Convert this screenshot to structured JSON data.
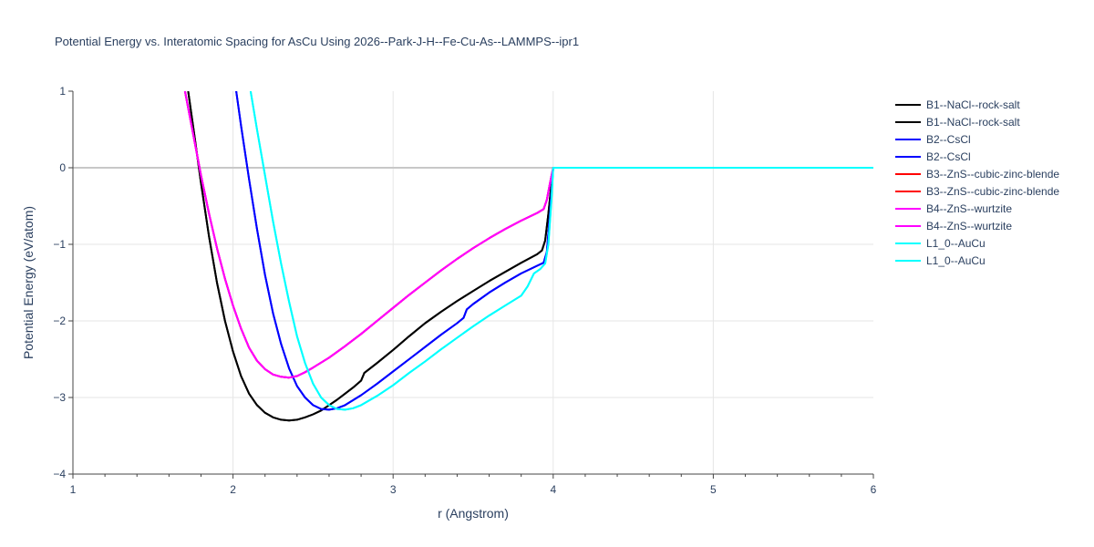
{
  "chart_data": {
    "type": "line",
    "title": "Potential Energy vs. Interatomic Spacing for AsCu Using 2026--Park-J-H--Fe-Cu-As--LAMMPS--ipr1",
    "xlabel": "r (Angstrom)",
    "ylabel": "Potential Energy (eV/atom)",
    "xlim": [
      1,
      6
    ],
    "ylim": [
      -4,
      1
    ],
    "x_ticks": [
      "1",
      "2",
      "3",
      "4",
      "5",
      "6"
    ],
    "y_ticks": [
      "1",
      "0",
      "−1",
      "−2",
      "−3",
      "−4"
    ],
    "grid": true,
    "legend_position": "right",
    "series": [
      {
        "name": "B1--NaCl--rock-salt",
        "color": "#000000",
        "x": [
          1.72,
          1.76,
          1.8,
          1.85,
          1.9,
          1.95,
          2.0,
          2.05,
          2.1,
          2.15,
          2.2,
          2.25,
          2.3,
          2.35,
          2.4,
          2.45,
          2.5,
          2.55,
          2.6,
          2.65,
          2.7,
          2.75,
          2.8,
          2.82,
          2.9,
          3.0,
          3.1,
          3.2,
          3.3,
          3.4,
          3.5,
          3.6,
          3.7,
          3.8,
          3.9,
          3.93,
          3.95,
          3.97,
          3.99,
          4.0,
          4.1,
          4.5,
          5.0,
          5.5,
          6.0
        ],
        "y": [
          1.0,
          0.4,
          -0.2,
          -0.9,
          -1.5,
          -2.0,
          -2.4,
          -2.72,
          -2.95,
          -3.1,
          -3.2,
          -3.26,
          -3.29,
          -3.3,
          -3.29,
          -3.26,
          -3.22,
          -3.17,
          -3.1,
          -3.03,
          -2.95,
          -2.87,
          -2.78,
          -2.68,
          -2.55,
          -2.38,
          -2.2,
          -2.03,
          -1.88,
          -1.74,
          -1.61,
          -1.48,
          -1.36,
          -1.24,
          -1.13,
          -1.08,
          -0.95,
          -0.6,
          -0.2,
          0.0,
          0.0,
          0.0,
          0.0,
          0.0,
          0.0
        ]
      },
      {
        "name": "B1--NaCl--rock-salt",
        "color": "#000000",
        "x": [
          1.72,
          1.76,
          1.8,
          1.85,
          1.9,
          1.95,
          2.0,
          2.05,
          2.1,
          2.15,
          2.2,
          2.25,
          2.3,
          2.35,
          2.4,
          2.45,
          2.5,
          2.55,
          2.6,
          2.65,
          2.7,
          2.75,
          2.8,
          2.82,
          2.9,
          3.0,
          3.1,
          3.2,
          3.3,
          3.4,
          3.5,
          3.6,
          3.7,
          3.8,
          3.9,
          3.93,
          3.95,
          3.97,
          3.99,
          4.0,
          4.1,
          4.5,
          5.0,
          5.5,
          6.0
        ],
        "y": [
          1.0,
          0.4,
          -0.2,
          -0.9,
          -1.5,
          -2.0,
          -2.4,
          -2.72,
          -2.95,
          -3.1,
          -3.2,
          -3.26,
          -3.29,
          -3.3,
          -3.29,
          -3.26,
          -3.22,
          -3.17,
          -3.1,
          -3.03,
          -2.95,
          -2.87,
          -2.78,
          -2.68,
          -2.55,
          -2.38,
          -2.2,
          -2.03,
          -1.88,
          -1.74,
          -1.61,
          -1.48,
          -1.36,
          -1.24,
          -1.13,
          -1.08,
          -0.95,
          -0.6,
          -0.2,
          0.0,
          0.0,
          0.0,
          0.0,
          0.0,
          0.0
        ]
      },
      {
        "name": "B2--CsCl",
        "color": "#0000ff",
        "x": [
          2.02,
          2.05,
          2.1,
          2.15,
          2.2,
          2.25,
          2.3,
          2.35,
          2.4,
          2.45,
          2.5,
          2.55,
          2.6,
          2.65,
          2.7,
          2.8,
          2.9,
          3.0,
          3.1,
          3.2,
          3.3,
          3.4,
          3.44,
          3.46,
          3.5,
          3.6,
          3.7,
          3.8,
          3.9,
          3.94,
          3.96,
          3.98,
          4.0,
          4.1,
          4.5,
          5.0,
          5.5,
          6.0
        ],
        "y": [
          1.0,
          0.55,
          -0.15,
          -0.8,
          -1.4,
          -1.9,
          -2.3,
          -2.62,
          -2.85,
          -3.0,
          -3.1,
          -3.15,
          -3.16,
          -3.14,
          -3.1,
          -2.97,
          -2.82,
          -2.66,
          -2.5,
          -2.34,
          -2.18,
          -2.03,
          -1.96,
          -1.85,
          -1.78,
          -1.63,
          -1.5,
          -1.38,
          -1.28,
          -1.24,
          -1.1,
          -0.6,
          0.0,
          0.0,
          0.0,
          0.0,
          0.0,
          0.0
        ]
      },
      {
        "name": "B2--CsCl",
        "color": "#0000ff",
        "x": [
          2.02,
          2.05,
          2.1,
          2.15,
          2.2,
          2.25,
          2.3,
          2.35,
          2.4,
          2.45,
          2.5,
          2.55,
          2.6,
          2.65,
          2.7,
          2.8,
          2.9,
          3.0,
          3.1,
          3.2,
          3.3,
          3.4,
          3.44,
          3.46,
          3.5,
          3.6,
          3.7,
          3.8,
          3.9,
          3.94,
          3.96,
          3.98,
          4.0,
          4.1,
          4.5,
          5.0,
          5.5,
          6.0
        ],
        "y": [
          1.0,
          0.55,
          -0.15,
          -0.8,
          -1.4,
          -1.9,
          -2.3,
          -2.62,
          -2.85,
          -3.0,
          -3.1,
          -3.15,
          -3.16,
          -3.14,
          -3.1,
          -2.97,
          -2.82,
          -2.66,
          -2.5,
          -2.34,
          -2.18,
          -2.03,
          -1.96,
          -1.85,
          -1.78,
          -1.63,
          -1.5,
          -1.38,
          -1.28,
          -1.24,
          -1.1,
          -0.6,
          0.0,
          0.0,
          0.0,
          0.0,
          0.0,
          0.0
        ]
      },
      {
        "name": "B3--ZnS--cubic-zinc-blende",
        "color": "#ff0000",
        "x": [
          1.7,
          1.75,
          1.8,
          1.85,
          1.9,
          1.95,
          2.0,
          2.05,
          2.1,
          2.15,
          2.2,
          2.25,
          2.3,
          2.35,
          2.4,
          2.45,
          2.5,
          2.6,
          2.7,
          2.8,
          2.9,
          3.0,
          3.1,
          3.2,
          3.3,
          3.4,
          3.5,
          3.6,
          3.7,
          3.8,
          3.9,
          3.94,
          3.96,
          3.98,
          4.0,
          4.1,
          4.5,
          5.0,
          5.5,
          6.0
        ],
        "y": [
          1.0,
          0.45,
          -0.1,
          -0.6,
          -1.05,
          -1.45,
          -1.8,
          -2.1,
          -2.35,
          -2.52,
          -2.63,
          -2.7,
          -2.73,
          -2.74,
          -2.72,
          -2.67,
          -2.61,
          -2.48,
          -2.33,
          -2.17,
          -2.0,
          -1.83,
          -1.66,
          -1.5,
          -1.34,
          -1.19,
          -1.05,
          -0.92,
          -0.8,
          -0.69,
          -0.59,
          -0.54,
          -0.42,
          -0.2,
          0.0,
          0.0,
          0.0,
          0.0,
          0.0,
          0.0
        ]
      },
      {
        "name": "B3--ZnS--cubic-zinc-blende",
        "color": "#ff0000",
        "x": [
          1.7,
          1.75,
          1.8,
          1.85,
          1.9,
          1.95,
          2.0,
          2.05,
          2.1,
          2.15,
          2.2,
          2.25,
          2.3,
          2.35,
          2.4,
          2.45,
          2.5,
          2.6,
          2.7,
          2.8,
          2.9,
          3.0,
          3.1,
          3.2,
          3.3,
          3.4,
          3.5,
          3.6,
          3.7,
          3.8,
          3.9,
          3.94,
          3.96,
          3.98,
          4.0,
          4.1,
          4.5,
          5.0,
          5.5,
          6.0
        ],
        "y": [
          1.0,
          0.45,
          -0.1,
          -0.6,
          -1.05,
          -1.45,
          -1.8,
          -2.1,
          -2.35,
          -2.52,
          -2.63,
          -2.7,
          -2.73,
          -2.74,
          -2.72,
          -2.67,
          -2.61,
          -2.48,
          -2.33,
          -2.17,
          -2.0,
          -1.83,
          -1.66,
          -1.5,
          -1.34,
          -1.19,
          -1.05,
          -0.92,
          -0.8,
          -0.69,
          -0.59,
          -0.54,
          -0.42,
          -0.2,
          0.0,
          0.0,
          0.0,
          0.0,
          0.0,
          0.0
        ]
      },
      {
        "name": "B4--ZnS--wurtzite",
        "color": "#ff00ff",
        "x": [
          1.7,
          1.75,
          1.8,
          1.85,
          1.9,
          1.95,
          2.0,
          2.05,
          2.1,
          2.15,
          2.2,
          2.25,
          2.3,
          2.35,
          2.4,
          2.45,
          2.5,
          2.6,
          2.7,
          2.8,
          2.9,
          3.0,
          3.1,
          3.2,
          3.3,
          3.4,
          3.5,
          3.6,
          3.7,
          3.8,
          3.9,
          3.94,
          3.96,
          3.98,
          4.0,
          4.1,
          4.5,
          5.0,
          5.5,
          6.0
        ],
        "y": [
          1.0,
          0.45,
          -0.1,
          -0.6,
          -1.05,
          -1.45,
          -1.8,
          -2.1,
          -2.35,
          -2.52,
          -2.63,
          -2.7,
          -2.73,
          -2.74,
          -2.72,
          -2.67,
          -2.61,
          -2.48,
          -2.33,
          -2.17,
          -2.0,
          -1.83,
          -1.66,
          -1.5,
          -1.34,
          -1.19,
          -1.05,
          -0.92,
          -0.8,
          -0.69,
          -0.59,
          -0.54,
          -0.42,
          -0.2,
          0.0,
          0.0,
          0.0,
          0.0,
          0.0,
          0.0
        ]
      },
      {
        "name": "B4--ZnS--wurtzite",
        "color": "#ff00ff",
        "x": [
          1.7,
          1.75,
          1.8,
          1.85,
          1.9,
          1.95,
          2.0,
          2.05,
          2.1,
          2.15,
          2.2,
          2.25,
          2.3,
          2.35,
          2.4,
          2.45,
          2.5,
          2.6,
          2.7,
          2.8,
          2.9,
          3.0,
          3.1,
          3.2,
          3.3,
          3.4,
          3.5,
          3.6,
          3.7,
          3.8,
          3.9,
          3.94,
          3.96,
          3.98,
          4.0,
          4.1,
          4.5,
          5.0,
          5.5,
          6.0
        ],
        "y": [
          1.0,
          0.45,
          -0.1,
          -0.6,
          -1.05,
          -1.45,
          -1.8,
          -2.1,
          -2.35,
          -2.52,
          -2.63,
          -2.7,
          -2.73,
          -2.74,
          -2.72,
          -2.67,
          -2.61,
          -2.48,
          -2.33,
          -2.17,
          -2.0,
          -1.83,
          -1.66,
          -1.5,
          -1.34,
          -1.19,
          -1.05,
          -0.92,
          -0.8,
          -0.69,
          -0.59,
          -0.54,
          -0.42,
          -0.2,
          0.0,
          0.0,
          0.0,
          0.0,
          0.0,
          0.0
        ]
      },
      {
        "name": "L1_0--AuCu",
        "color": "#00ffff",
        "x": [
          2.11,
          2.15,
          2.2,
          2.25,
          2.3,
          2.35,
          2.4,
          2.45,
          2.5,
          2.55,
          2.6,
          2.65,
          2.7,
          2.75,
          2.8,
          2.9,
          3.0,
          3.1,
          3.2,
          3.3,
          3.4,
          3.5,
          3.6,
          3.7,
          3.8,
          3.84,
          3.88,
          3.92,
          3.95,
          3.97,
          3.99,
          4.0,
          4.1,
          4.5,
          5.0,
          5.5,
          6.0
        ],
        "y": [
          1.0,
          0.5,
          -0.1,
          -0.7,
          -1.25,
          -1.75,
          -2.2,
          -2.55,
          -2.82,
          -3.0,
          -3.1,
          -3.15,
          -3.16,
          -3.14,
          -3.1,
          -2.98,
          -2.84,
          -2.68,
          -2.53,
          -2.37,
          -2.22,
          -2.07,
          -1.93,
          -1.8,
          -1.67,
          -1.55,
          -1.38,
          -1.32,
          -1.25,
          -1.0,
          -0.4,
          0.0,
          0.0,
          0.0,
          0.0,
          0.0,
          0.0
        ]
      },
      {
        "name": "L1_0--AuCu",
        "color": "#00ffff",
        "x": [
          2.11,
          2.15,
          2.2,
          2.25,
          2.3,
          2.35,
          2.4,
          2.45,
          2.5,
          2.55,
          2.6,
          2.65,
          2.7,
          2.75,
          2.8,
          2.9,
          3.0,
          3.1,
          3.2,
          3.3,
          3.4,
          3.5,
          3.6,
          3.7,
          3.8,
          3.84,
          3.88,
          3.92,
          3.95,
          3.97,
          3.99,
          4.0,
          4.1,
          4.5,
          5.0,
          5.5,
          6.0
        ],
        "y": [
          1.0,
          0.5,
          -0.1,
          -0.7,
          -1.25,
          -1.75,
          -2.2,
          -2.55,
          -2.82,
          -3.0,
          -3.1,
          -3.15,
          -3.16,
          -3.14,
          -3.1,
          -2.98,
          -2.84,
          -2.68,
          -2.53,
          -2.37,
          -2.22,
          -2.07,
          -1.93,
          -1.8,
          -1.67,
          -1.55,
          -1.38,
          -1.32,
          -1.25,
          -1.0,
          -0.4,
          0.0,
          0.0,
          0.0,
          0.0,
          0.0,
          0.0
        ]
      }
    ]
  }
}
